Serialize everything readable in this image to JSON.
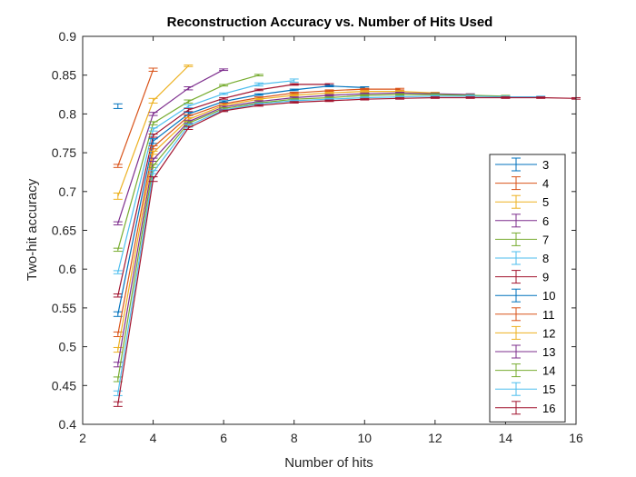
{
  "chart_data": {
    "type": "line",
    "title": "Reconstruction Accuracy vs. Number of Hits Used",
    "xlabel": "Number of hits",
    "ylabel": "Two-hit accuracy",
    "xlim": [
      2,
      16
    ],
    "ylim": [
      0.4,
      0.9
    ],
    "xticks": [
      "2",
      "4",
      "6",
      "8",
      "10",
      "12",
      "14",
      "16"
    ],
    "yticks": [
      "0.4",
      "0.45",
      "0.5",
      "0.55",
      "0.6",
      "0.65",
      "0.7",
      "0.75",
      "0.8",
      "0.85",
      "0.9"
    ],
    "grid": false,
    "legend_position": "bottom-right",
    "error_bars": true,
    "series": [
      {
        "name": "3",
        "color": "#0072BD",
        "x": [
          3
        ],
        "y": [
          0.81
        ],
        "err": [
          0.003
        ]
      },
      {
        "name": "4",
        "color": "#D95319",
        "x": [
          3,
          4
        ],
        "y": [
          0.733,
          0.857
        ],
        "err": [
          0.002,
          0.002
        ]
      },
      {
        "name": "5",
        "color": "#EDB120",
        "x": [
          3,
          4,
          5
        ],
        "y": [
          0.694,
          0.817,
          0.862
        ],
        "err": [
          0.004,
          0.003,
          0.001
        ]
      },
      {
        "name": "6",
        "color": "#7E2F8E",
        "x": [
          3,
          4,
          5,
          6
        ],
        "y": [
          0.659,
          0.8,
          0.833,
          0.857
        ],
        "err": [
          0.002,
          0.002,
          0.002,
          0.001
        ]
      },
      {
        "name": "7",
        "color": "#77AC30",
        "x": [
          3,
          4,
          5,
          6,
          7
        ],
        "y": [
          0.625,
          0.788,
          0.816,
          0.837,
          0.85
        ],
        "err": [
          0.002,
          0.002,
          0.002,
          0.001,
          0.001
        ]
      },
      {
        "name": "8",
        "color": "#4DBEEE",
        "x": [
          3,
          4,
          5,
          6,
          7,
          8
        ],
        "y": [
          0.596,
          0.78,
          0.81,
          0.826,
          0.838,
          0.843
        ],
        "err": [
          0.002,
          0.002,
          0.002,
          0.001,
          0.002,
          0.002
        ]
      },
      {
        "name": "9",
        "color": "#A2142F",
        "x": [
          3,
          4,
          5,
          6,
          7,
          8,
          9
        ],
        "y": [
          0.566,
          0.772,
          0.805,
          0.82,
          0.831,
          0.838,
          0.838
        ],
        "err": [
          0.002,
          0.002,
          0.002,
          0.001,
          0.001,
          0.001,
          0.001
        ]
      },
      {
        "name": "10",
        "color": "#0072BD",
        "x": [
          3,
          4,
          5,
          6,
          7,
          8,
          9,
          10
        ],
        "y": [
          0.542,
          0.765,
          0.8,
          0.816,
          0.825,
          0.831,
          0.836,
          0.834
        ],
        "err": [
          0.003,
          0.003,
          0.002,
          0.001,
          0.001,
          0.001,
          0.001,
          0.001
        ]
      },
      {
        "name": "11",
        "color": "#D95319",
        "x": [
          3,
          4,
          5,
          6,
          7,
          8,
          9,
          10,
          11
        ],
        "y": [
          0.516,
          0.757,
          0.797,
          0.813,
          0.821,
          0.827,
          0.83,
          0.832,
          0.832
        ],
        "err": [
          0.003,
          0.002,
          0.002,
          0.001,
          0.001,
          0.001,
          0.001,
          0.001,
          0.001
        ]
      },
      {
        "name": "12",
        "color": "#EDB120",
        "x": [
          3,
          4,
          5,
          6,
          7,
          8,
          9,
          10,
          11,
          12
        ],
        "y": [
          0.496,
          0.75,
          0.793,
          0.811,
          0.819,
          0.824,
          0.827,
          0.829,
          0.829,
          0.827
        ],
        "err": [
          0.003,
          0.002,
          0.002,
          0.001,
          0.001,
          0.001,
          0.001,
          0.001,
          0.001,
          0.001
        ]
      },
      {
        "name": "13",
        "color": "#7E2F8E",
        "x": [
          3,
          4,
          5,
          6,
          7,
          8,
          9,
          10,
          11,
          12,
          13
        ],
        "y": [
          0.477,
          0.741,
          0.79,
          0.809,
          0.816,
          0.821,
          0.824,
          0.826,
          0.827,
          0.826,
          0.825
        ],
        "err": [
          0.003,
          0.002,
          0.002,
          0.001,
          0.001,
          0.001,
          0.001,
          0.001,
          0.001,
          0.001,
          0.001
        ]
      },
      {
        "name": "14",
        "color": "#77AC30",
        "x": [
          3,
          4,
          5,
          6,
          7,
          8,
          9,
          10,
          11,
          12,
          13,
          14
        ],
        "y": [
          0.458,
          0.733,
          0.788,
          0.807,
          0.814,
          0.819,
          0.821,
          0.824,
          0.825,
          0.825,
          0.824,
          0.823
        ],
        "err": [
          0.003,
          0.002,
          0.002,
          0.001,
          0.001,
          0.001,
          0.001,
          0.001,
          0.001,
          0.001,
          0.001,
          0.001
        ]
      },
      {
        "name": "15",
        "color": "#4DBEEE",
        "x": [
          3,
          4,
          5,
          6,
          7,
          8,
          9,
          10,
          11,
          12,
          13,
          14,
          15
        ],
        "y": [
          0.44,
          0.725,
          0.785,
          0.805,
          0.813,
          0.817,
          0.819,
          0.821,
          0.822,
          0.823,
          0.823,
          0.822,
          0.822
        ],
        "err": [
          0.003,
          0.002,
          0.002,
          0.001,
          0.001,
          0.001,
          0.001,
          0.001,
          0.001,
          0.001,
          0.001,
          0.001,
          0.001
        ]
      },
      {
        "name": "16",
        "color": "#A2142F",
        "x": [
          3,
          4,
          5,
          6,
          7,
          8,
          9,
          10,
          11,
          12,
          13,
          14,
          15,
          16
        ],
        "y": [
          0.426,
          0.716,
          0.782,
          0.804,
          0.811,
          0.815,
          0.817,
          0.819,
          0.82,
          0.821,
          0.821,
          0.821,
          0.821,
          0.82
        ],
        "err": [
          0.003,
          0.003,
          0.002,
          0.001,
          0.001,
          0.001,
          0.001,
          0.001,
          0.001,
          0.001,
          0.001,
          0.001,
          0.001,
          0.001
        ]
      }
    ]
  }
}
